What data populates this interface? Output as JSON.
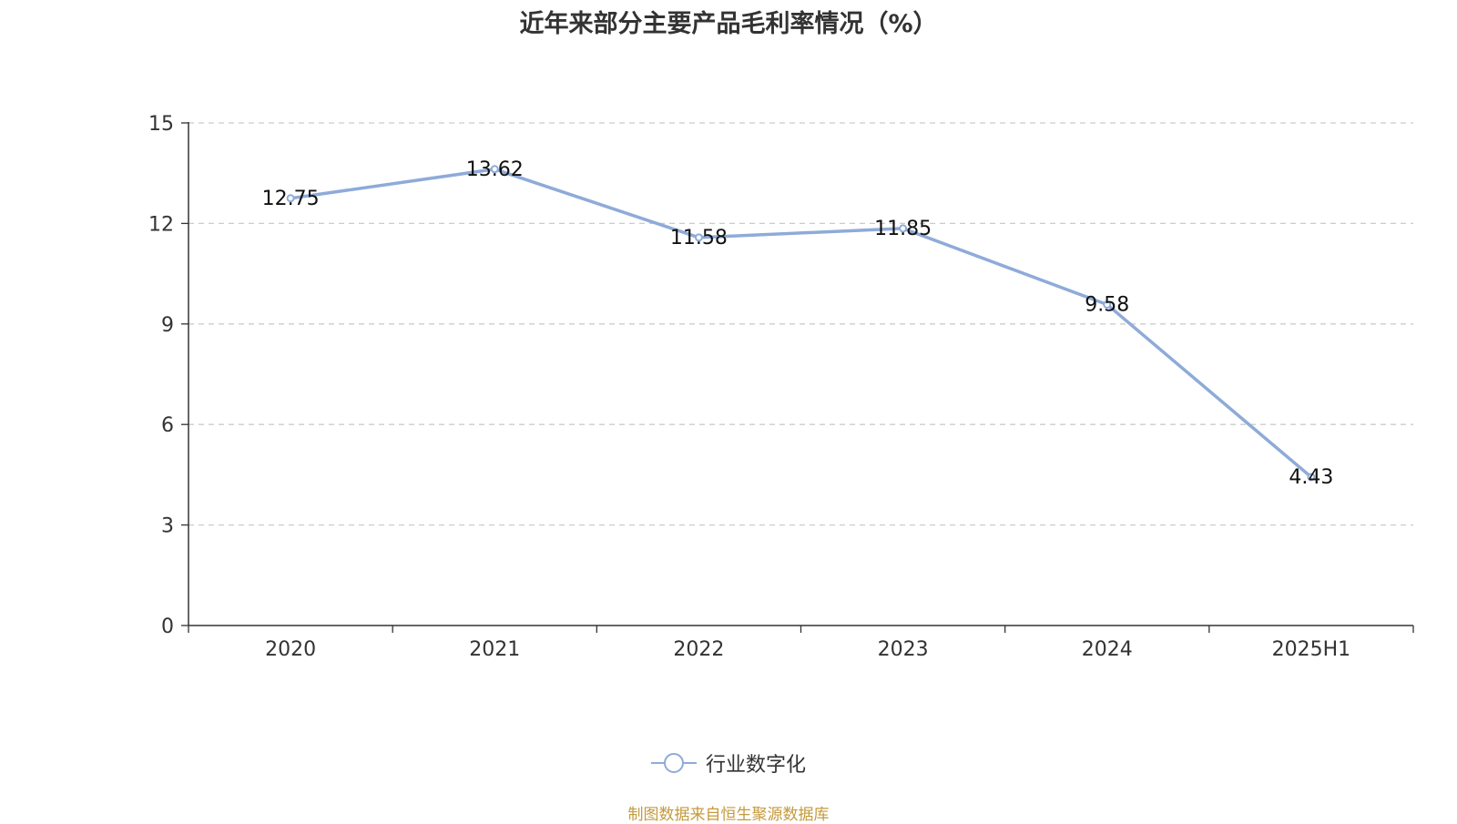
{
  "colors": {
    "series": "#8eabd8",
    "axis": "#333333",
    "grid": "#cccccc",
    "source": "#c49a3c"
  },
  "chart_data": {
    "type": "line",
    "title": "近年来部分主要产品毛利率情况（%）",
    "categories": [
      "2020",
      "2021",
      "2022",
      "2023",
      "2024",
      "2025H1"
    ],
    "series": [
      {
        "name": "行业数字化",
        "values": [
          12.75,
          13.62,
          11.58,
          11.85,
          9.58,
          4.43
        ]
      }
    ],
    "ylim": [
      0,
      15
    ],
    "yticks": [
      0,
      3,
      6,
      9,
      12,
      15
    ],
    "xlabel": "",
    "ylabel": "",
    "grid": true,
    "legend": "bottom-center",
    "data_labels": true
  },
  "source_note": "制图数据来自恒生聚源数据库"
}
